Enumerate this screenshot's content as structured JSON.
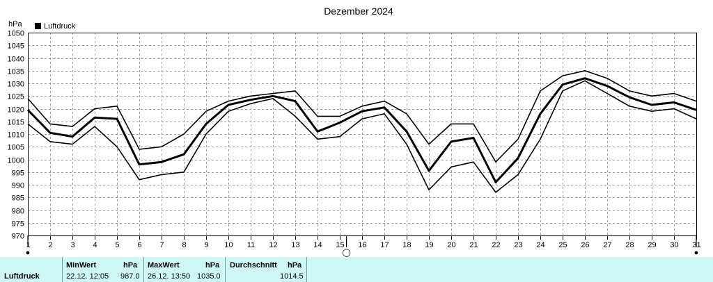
{
  "chart_data": {
    "type": "line",
    "title": "Dezember 2024",
    "ylabel": "hPa",
    "legend": [
      "Luftdruck"
    ],
    "legend_position": "top-left",
    "ylim": [
      970,
      1050
    ],
    "yticks": [
      970,
      975,
      980,
      985,
      990,
      995,
      1000,
      1005,
      1010,
      1015,
      1020,
      1025,
      1030,
      1035,
      1040,
      1045,
      1050
    ],
    "x": [
      1,
      2,
      3,
      4,
      5,
      6,
      7,
      8,
      9,
      10,
      11,
      12,
      13,
      14,
      15,
      16,
      17,
      18,
      19,
      20,
      21,
      22,
      23,
      24,
      25,
      26,
      27,
      28,
      29,
      30,
      31
    ],
    "xlim": [
      1,
      31
    ],
    "grid": true,
    "series": [
      {
        "name": "Luftdruck",
        "values": [
          1019.5,
          1010.5,
          1009,
          1016.5,
          1016,
          998,
          999,
          1002,
          1014,
          1021.5,
          1023.5,
          1025,
          1023,
          1011,
          1014.5,
          1019,
          1020.5,
          1011,
          995.5,
          1007,
          1008.5,
          991,
          1000.5,
          1018,
          1029.5,
          1032,
          1029,
          1024.5,
          1021.5,
          1022.5,
          1019.5
        ]
      },
      {
        "values": [
          1024,
          1014,
          1013,
          1020,
          1021,
          1004,
          1005,
          1010,
          1019,
          1023,
          1025,
          1026,
          1027,
          1017,
          1017,
          1021,
          1023,
          1018,
          1006,
          1014,
          1014,
          999,
          1008,
          1027,
          1033,
          1035,
          1032,
          1027,
          1025,
          1026,
          1023
        ]
      },
      {
        "values": [
          1014,
          1007,
          1006,
          1013,
          1005,
          992,
          994,
          995,
          1010,
          1019,
          1022,
          1024,
          1017,
          1008,
          1009,
          1016,
          1018,
          1006,
          988,
          997,
          999,
          987,
          994,
          1008,
          1027,
          1031,
          1026,
          1021,
          1019,
          1020,
          1016
        ]
      }
    ],
    "moon_markers": [
      {
        "day": 1,
        "symbol": "●"
      },
      {
        "day": 15.3,
        "symbol": "◯"
      },
      {
        "day": 31,
        "symbol": "●"
      }
    ]
  },
  "stats": {
    "name": "Luftdruck",
    "min_label": "MinWert",
    "min_unit": "hPa",
    "min_time": "22.12.  12:05",
    "min_value": "987.0",
    "max_label": "MaxWert",
    "max_unit": "hPa",
    "max_time": "26.12.  13:50",
    "max_value": "1035.0",
    "avg_label": "Durchschnitt",
    "avg_unit": "hPa",
    "avg_value": "1014.5"
  }
}
